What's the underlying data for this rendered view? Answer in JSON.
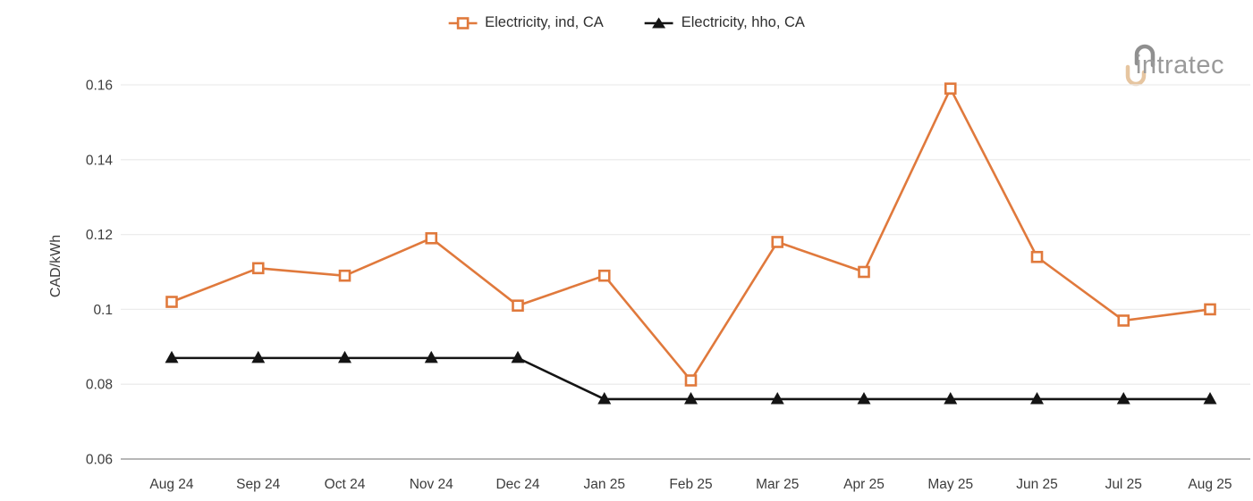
{
  "y_axis_title": "CAD/kWh",
  "logo": {
    "text": "intratec"
  },
  "colors": {
    "series_ind": "#e0793c",
    "series_hho": "#141414",
    "gridline": "#ececec",
    "axis_line": "#8c8c8c",
    "tick_text": "#3c3c3c",
    "legend_text": "#2f2f2f",
    "logo_gray": "#8f8f8f",
    "logo_tan": "#e6c5a0"
  },
  "chart_data": {
    "type": "line",
    "title": "",
    "xlabel": "",
    "ylabel": "CAD/kWh",
    "legend_position": "top",
    "grid": true,
    "ylim": [
      0.06,
      0.168
    ],
    "y_ticks": [
      {
        "value": 0.06,
        "label": "0.06"
      },
      {
        "value": 0.08,
        "label": "0.08"
      },
      {
        "value": 0.1,
        "label": "0.1"
      },
      {
        "value": 0.12,
        "label": "0.12"
      },
      {
        "value": 0.14,
        "label": "0.14"
      },
      {
        "value": 0.16,
        "label": "0.16"
      }
    ],
    "categories": [
      "Aug 24",
      "Sep 24",
      "Oct 24",
      "Nov 24",
      "Dec 24",
      "Jan 25",
      "Feb 25",
      "Mar 25",
      "Apr 25",
      "May 25",
      "Jun 25",
      "Jul 25",
      "Aug 25"
    ],
    "series": [
      {
        "name": "Electricity, ind, CA",
        "color": "#e0793c",
        "marker": "square",
        "values": [
          0.102,
          0.111,
          0.109,
          0.119,
          0.101,
          0.109,
          0.081,
          0.118,
          0.11,
          0.159,
          0.114,
          0.097,
          0.1
        ]
      },
      {
        "name": "Electricity, hho, CA",
        "color": "#141414",
        "marker": "triangle",
        "values": [
          0.087,
          0.087,
          0.087,
          0.087,
          0.087,
          0.076,
          0.076,
          0.076,
          0.076,
          0.076,
          0.076,
          0.076,
          0.076
        ]
      }
    ]
  }
}
